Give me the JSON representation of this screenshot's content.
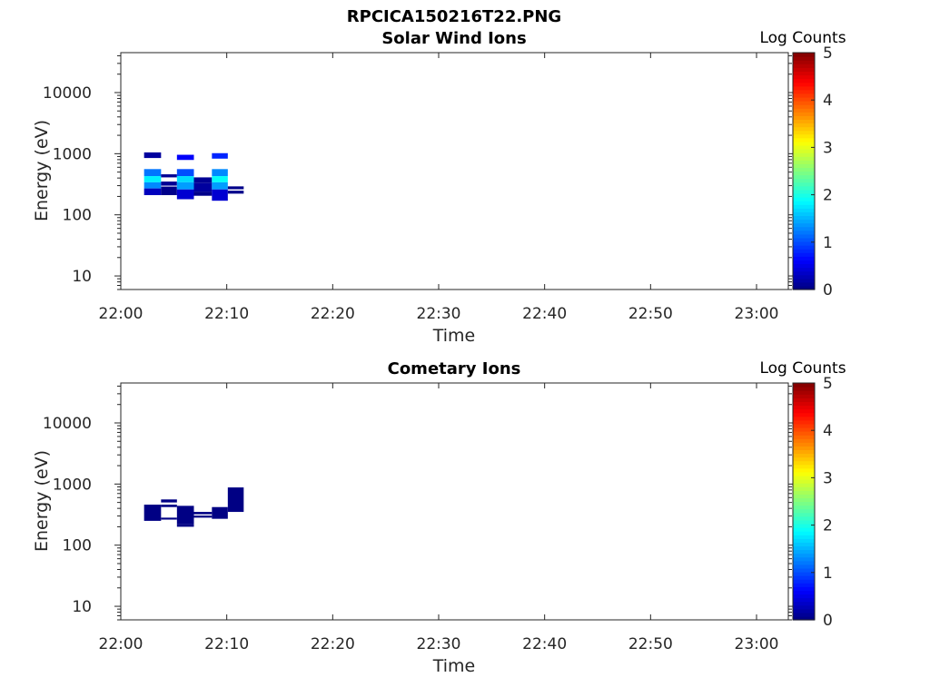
{
  "figure_title": "RPCICA150216T22.PNG",
  "chart_data": [
    {
      "type": "heatmap",
      "title": "Solar Wind Ions",
      "xlabel": "Time",
      "ylabel": "Energy (eV)",
      "x_ticks": [
        "22:00",
        "22:10",
        "22:20",
        "22:30",
        "22:40",
        "22:50",
        "23:00"
      ],
      "x_range_minutes": [
        0,
        63
      ],
      "y_scale": "log",
      "y_ticks": [
        "10",
        "100",
        "1000",
        "10000"
      ],
      "y_range": [
        6,
        45000
      ],
      "grid": false,
      "colorbar": {
        "label": "Log Counts",
        "ticks": [
          "0",
          "1",
          "2",
          "3",
          "4",
          "5"
        ],
        "range": [
          0,
          5
        ],
        "colormap": "jet"
      },
      "cells": [
        {
          "t0": 2.2,
          "t1": 3.8,
          "e0": 850,
          "e1": 1050,
          "v": 0.15
        },
        {
          "t0": 5.3,
          "t1": 6.9,
          "e0": 790,
          "e1": 960,
          "v": 0.6
        },
        {
          "t0": 8.6,
          "t1": 10.1,
          "e0": 830,
          "e1": 1020,
          "v": 0.8
        },
        {
          "t0": 2.2,
          "t1": 3.8,
          "e0": 430,
          "e1": 560,
          "v": 1.2
        },
        {
          "t0": 2.2,
          "t1": 3.8,
          "e0": 340,
          "e1": 430,
          "v": 1.8
        },
        {
          "t0": 2.2,
          "t1": 3.8,
          "e0": 270,
          "e1": 340,
          "v": 1.3
        },
        {
          "t0": 2.2,
          "t1": 3.8,
          "e0": 210,
          "e1": 270,
          "v": 0.3
        },
        {
          "t0": 3.8,
          "t1": 5.3,
          "e0": 410,
          "e1": 460,
          "v": 0.1
        },
        {
          "t0": 3.8,
          "t1": 5.3,
          "e0": 300,
          "e1": 350,
          "v": 0.1
        },
        {
          "t0": 3.8,
          "t1": 5.3,
          "e0": 210,
          "e1": 290,
          "v": 0.05
        },
        {
          "t0": 5.3,
          "t1": 6.9,
          "e0": 430,
          "e1": 560,
          "v": 1.0
        },
        {
          "t0": 5.3,
          "t1": 6.9,
          "e0": 340,
          "e1": 430,
          "v": 1.7
        },
        {
          "t0": 5.3,
          "t1": 6.9,
          "e0": 260,
          "e1": 340,
          "v": 1.4
        },
        {
          "t0": 5.3,
          "t1": 6.9,
          "e0": 180,
          "e1": 260,
          "v": 0.4
        },
        {
          "t0": 6.9,
          "t1": 8.6,
          "e0": 330,
          "e1": 410,
          "v": 0.1
        },
        {
          "t0": 6.9,
          "t1": 8.6,
          "e0": 240,
          "e1": 330,
          "v": 0.15
        },
        {
          "t0": 6.9,
          "t1": 8.6,
          "e0": 205,
          "e1": 240,
          "v": 0.05
        },
        {
          "t0": 8.6,
          "t1": 10.1,
          "e0": 430,
          "e1": 560,
          "v": 1.3
        },
        {
          "t0": 8.6,
          "t1": 10.1,
          "e0": 340,
          "e1": 430,
          "v": 1.9
        },
        {
          "t0": 8.6,
          "t1": 10.1,
          "e0": 260,
          "e1": 340,
          "v": 1.4
        },
        {
          "t0": 8.6,
          "t1": 10.1,
          "e0": 170,
          "e1": 260,
          "v": 0.4
        },
        {
          "t0": 10.1,
          "t1": 11.6,
          "e0": 262,
          "e1": 292,
          "v": 0.05
        },
        {
          "t0": 10.1,
          "t1": 11.6,
          "e0": 222,
          "e1": 248,
          "v": 0.05
        }
      ]
    },
    {
      "type": "heatmap",
      "title": "Cometary Ions",
      "xlabel": "Time",
      "ylabel": "Energy (eV)",
      "x_ticks": [
        "22:00",
        "22:10",
        "22:20",
        "22:30",
        "22:40",
        "22:50",
        "23:00"
      ],
      "x_range_minutes": [
        0,
        63
      ],
      "y_scale": "log",
      "y_ticks": [
        "10",
        "100",
        "1000",
        "10000"
      ],
      "y_range": [
        6,
        45000
      ],
      "grid": false,
      "colorbar": {
        "label": "Log Counts",
        "ticks": [
          "0",
          "1",
          "2",
          "3",
          "4",
          "5"
        ],
        "range": [
          0,
          5
        ],
        "colormap": "jet"
      },
      "cells": [
        {
          "t0": 2.2,
          "t1": 3.8,
          "e0": 250,
          "e1": 460,
          "v": 0.02
        },
        {
          "t0": 3.8,
          "t1": 5.3,
          "e0": 500,
          "e1": 560,
          "v": 0.02
        },
        {
          "t0": 3.8,
          "t1": 5.3,
          "e0": 420,
          "e1": 460,
          "v": 0.02
        },
        {
          "t0": 3.8,
          "t1": 5.3,
          "e0": 262,
          "e1": 282,
          "v": 0.02
        },
        {
          "t0": 5.3,
          "t1": 6.9,
          "e0": 220,
          "e1": 440,
          "v": 0.02
        },
        {
          "t0": 5.3,
          "t1": 6.9,
          "e0": 200,
          "e1": 220,
          "v": 0.02
        },
        {
          "t0": 6.9,
          "t1": 8.6,
          "e0": 320,
          "e1": 350,
          "v": 0.02
        },
        {
          "t0": 6.9,
          "t1": 8.6,
          "e0": 282,
          "e1": 305,
          "v": 0.02
        },
        {
          "t0": 8.6,
          "t1": 10.1,
          "e0": 270,
          "e1": 420,
          "v": 0.02
        },
        {
          "t0": 10.1,
          "t1": 11.6,
          "e0": 350,
          "e1": 880,
          "v": 0.02
        }
      ]
    }
  ]
}
